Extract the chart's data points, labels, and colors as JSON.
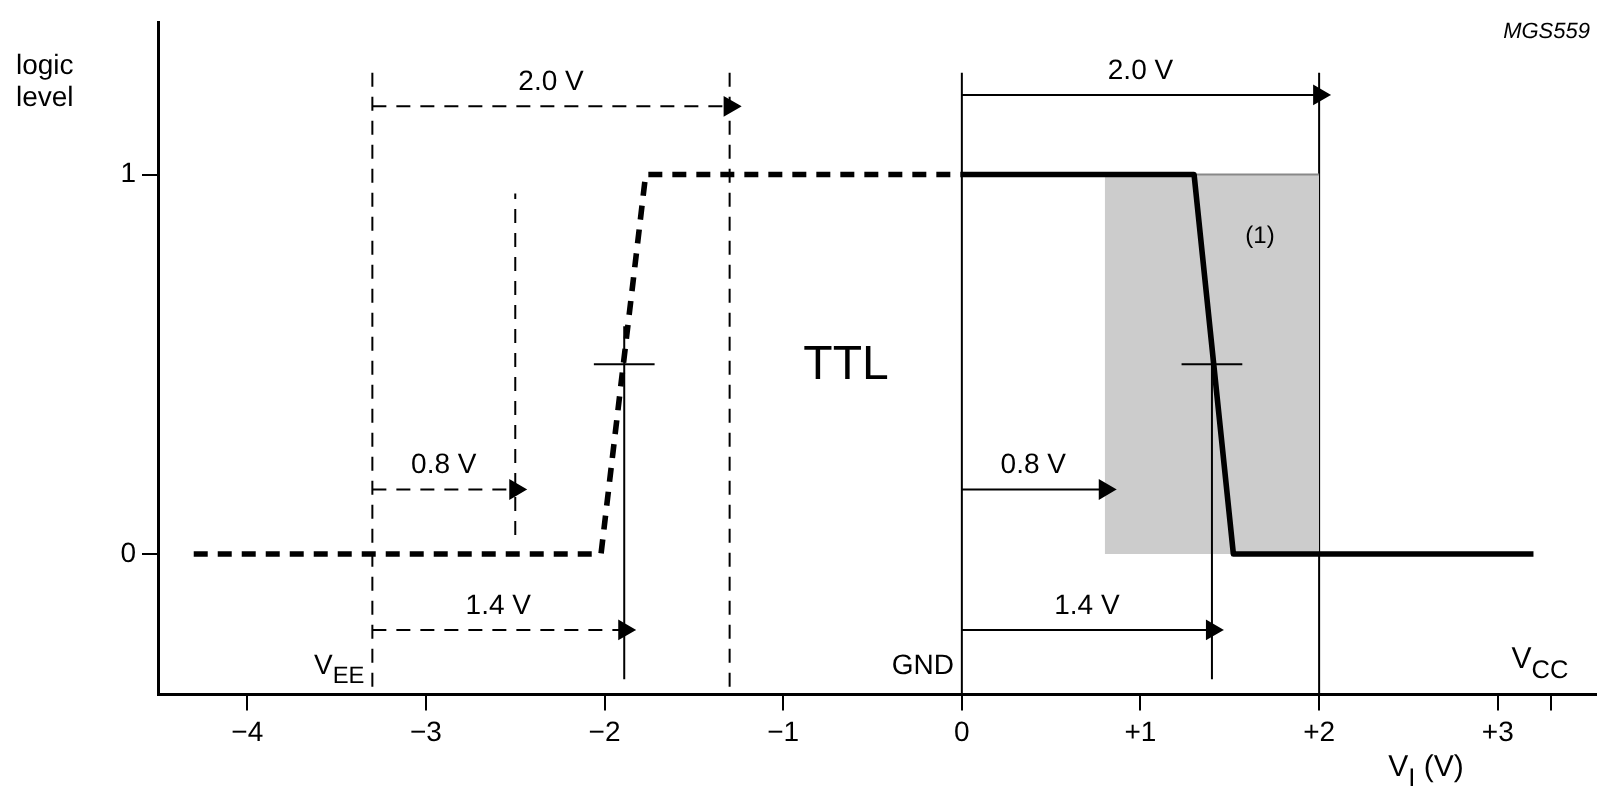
{
  "chart_data": {
    "type": "line",
    "xlabel": "V$_{I}$ (V)",
    "ylabel": "logic level",
    "xlim": [
      -4.5,
      3.55
    ],
    "ylim": [
      -0.37,
      1.4
    ],
    "xticks": [
      {
        "value": -4,
        "label": "−4"
      },
      {
        "value": -3,
        "label": "−3"
      },
      {
        "value": -2,
        "label": "−2"
      },
      {
        "value": -1,
        "label": "−1"
      },
      0,
      {
        "value": 1,
        "label": "+1"
      },
      {
        "value": 2,
        "label": "+2"
      },
      {
        "value": 3,
        "label": "+3"
      },
      {
        "value": 3.3,
        "label": null
      }
    ],
    "yticks": [
      0,
      1
    ],
    "grid": false,
    "legend": false,
    "series": [
      {
        "type": "area",
        "color": "#cccccc",
        "x": [
          0.8,
          2.0
        ],
        "values": [
          1,
          1
        ],
        "marker": "none"
      },
      {
        "color": "#000000",
        "x": [
          -4.3,
          -2.02,
          -1.77,
          0
        ],
        "values": [
          0,
          0,
          1,
          1
        ],
        "line_style": "dashed",
        "marker": "none"
      },
      {
        "color": "#000000",
        "x": [
          0,
          1.3,
          1.52,
          3.2
        ],
        "values": [
          1,
          1,
          0,
          0
        ],
        "line_style": "solid",
        "marker": "none"
      },
      {
        "color": "#000000",
        "x": [
          -2.06,
          -1.72
        ],
        "values": [
          0.5,
          0.5
        ],
        "line_style": "solid",
        "marker": "none"
      },
      {
        "color": "#000000",
        "x": [
          1.23,
          1.57
        ],
        "values": [
          0.5,
          0.5
        ],
        "line_style": "solid",
        "marker": "none"
      },
      {
        "color": "#000000",
        "x": [
          -2.5,
          -2.5
        ],
        "values": [
          0.05,
          0.95
        ],
        "line_style": "dashed",
        "marker": "none"
      },
      {
        "color": "#000000",
        "x": [
          -1.89,
          -1.89
        ],
        "values": [
          -0.33,
          0.6
        ],
        "line_style": "solid",
        "marker": "none"
      },
      {
        "color": "#000000",
        "x": [
          1.4,
          1.4
        ],
        "values": [
          -0.33,
          0.55
        ],
        "line_style": "solid",
        "marker": "none"
      },
      {
        "name": "2.0 V",
        "color": "#000000",
        "x": [
          -3.3,
          -1.3
        ],
        "values": [
          1.18,
          1.18
        ],
        "line_style": "dashed",
        "marker": "triangle"
      },
      {
        "name": "0.8 V",
        "color": "#000000",
        "x": [
          -3.3,
          -2.5
        ],
        "values": [
          0.17,
          0.17
        ],
        "line_style": "dashed",
        "marker": "triangle"
      },
      {
        "name": "1.4 V",
        "color": "#000000",
        "x": [
          -3.3,
          -1.89
        ],
        "values": [
          -0.2,
          -0.2
        ],
        "line_style": "dashed",
        "marker": "triangle"
      },
      {
        "name": "2.0 V",
        "color": "#000000",
        "x": [
          0,
          2.0
        ],
        "values": [
          1.21,
          1.21
        ],
        "line_style": "solid",
        "marker": "triangle"
      },
      {
        "name": "0.8 V",
        "color": "#000000",
        "x": [
          0,
          0.8
        ],
        "values": [
          0.17,
          0.17
        ],
        "line_style": "solid",
        "marker": "triangle"
      },
      {
        "name": "1.4 V",
        "color": "#000000",
        "x": [
          0,
          1.4
        ],
        "values": [
          -0.2,
          -0.2
        ],
        "line_style": "solid",
        "marker": "triangle"
      }
    ],
    "ref_lines": [
      {
        "axis": "x",
        "value": -3.3,
        "label": "V$_{EE}$",
        "line_style": "dashed",
        "color": "#000000"
      },
      {
        "axis": "x",
        "value": -1.3,
        "label": null,
        "line_style": "dashed",
        "color": "#000000"
      },
      {
        "axis": "x",
        "value": 0,
        "label": "GND",
        "line_style": "solid",
        "color": "#000000"
      },
      {
        "axis": "x",
        "value": 2.0,
        "label": null,
        "line_style": "solid",
        "color": "#000000"
      }
    ],
    "annotations": [
      "TTL",
      "(1)",
      "V$_{CC}$",
      "MGS559"
    ]
  }
}
